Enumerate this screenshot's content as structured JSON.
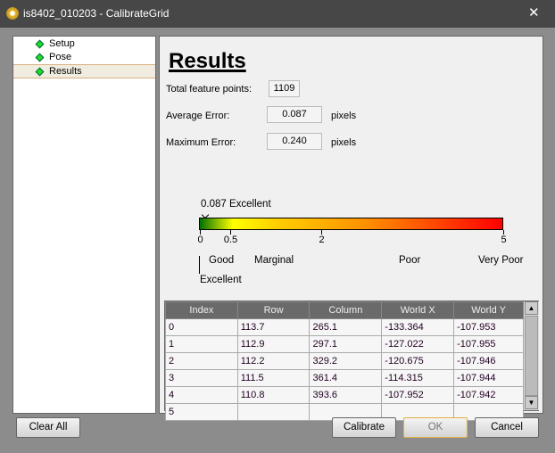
{
  "window": {
    "title": "is8402_010203 - CalibrateGrid",
    "close": "✕"
  },
  "nav": [
    {
      "label": "Setup"
    },
    {
      "label": "Pose"
    },
    {
      "label": "Results",
      "selected": true
    }
  ],
  "results": {
    "heading": "Results",
    "total_label": "Total feature points:",
    "total_value": "1109",
    "avg_label": "Average Error:",
    "avg_value": "0.087",
    "avg_unit": "pixels",
    "max_label": "Maximum Error:",
    "max_value": "0.240",
    "max_unit": "pixels"
  },
  "scale": {
    "marker_value": 0.087,
    "marker_label": "0.087 Excellent",
    "ticks": [
      {
        "v": 0,
        "l": "0"
      },
      {
        "v": 0.5,
        "l": "0.5"
      },
      {
        "v": 2,
        "l": "2"
      },
      {
        "v": 5,
        "l": "5"
      }
    ],
    "max": 5,
    "ratings": [
      "Good",
      "Marginal",
      "Poor",
      "Very Poor",
      "Excellent"
    ],
    "colors": {
      "start": "#007000",
      "yellow": "#ffff00",
      "end": "#ff0000"
    }
  },
  "table": {
    "headers": [
      "Index",
      "Row",
      "Column",
      "World X",
      "World Y"
    ],
    "rows": [
      [
        "0",
        "113.7",
        "265.1",
        "-133.364",
        "-107.953"
      ],
      [
        "1",
        "112.9",
        "297.1",
        "-127.022",
        "-107.955"
      ],
      [
        "2",
        "112.2",
        "329.2",
        "-120.675",
        "-107.946"
      ],
      [
        "3",
        "111.5",
        "361.4",
        "-114.315",
        "-107.944"
      ],
      [
        "4",
        "110.8",
        "393.6",
        "-107.952",
        "-107.942"
      ],
      [
        "5",
        "",
        "",
        "",
        ""
      ]
    ]
  },
  "buttons": {
    "clear": "Clear All",
    "calibrate": "Calibrate",
    "ok": "OK",
    "cancel": "Cancel"
  }
}
